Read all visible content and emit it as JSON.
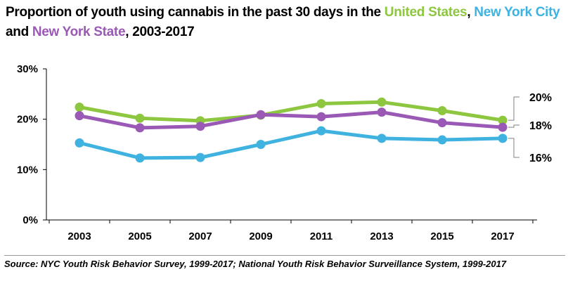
{
  "title": {
    "part1": "Proportion of youth using cannabis in the past 30 days in the ",
    "us": "United States",
    "sep1": ", ",
    "nyc": "New York City",
    "sep2": " and ",
    "nys": "New York State",
    "part2": ", 2003-2017"
  },
  "colors": {
    "us": "#8dc63f",
    "nyc": "#3fb2e0",
    "nys": "#9b59b6",
    "axis": "#000000"
  },
  "chart_data": {
    "type": "line",
    "x": [
      "2003",
      "2005",
      "2007",
      "2009",
      "2011",
      "2013",
      "2015",
      "2017"
    ],
    "yticks": [
      "0%",
      "10%",
      "20%",
      "30%"
    ],
    "ylim": [
      0,
      30
    ],
    "grid": false,
    "series": [
      {
        "name": "United States",
        "color_key": "us",
        "values": [
          22.4,
          20.2,
          19.7,
          20.8,
          23.1,
          23.4,
          21.7,
          19.8
        ]
      },
      {
        "name": "New York State",
        "color_key": "nys",
        "values": [
          20.7,
          18.3,
          18.6,
          20.9,
          20.5,
          21.4,
          19.3,
          18.4
        ]
      },
      {
        "name": "New York City",
        "color_key": "nyc",
        "values": [
          15.3,
          12.3,
          12.4,
          15.0,
          17.7,
          16.2,
          15.9,
          16.2
        ]
      }
    ],
    "end_labels": [
      {
        "series": "United States",
        "text": "20%"
      },
      {
        "series": "New York State",
        "text": "18%"
      },
      {
        "series": "New York City",
        "text": "16%"
      }
    ]
  },
  "source": "Source: NYC Youth Risk Behavior Survey, 1999-2017; National Youth Risk Behavior Surveillance System, 1999-2017"
}
